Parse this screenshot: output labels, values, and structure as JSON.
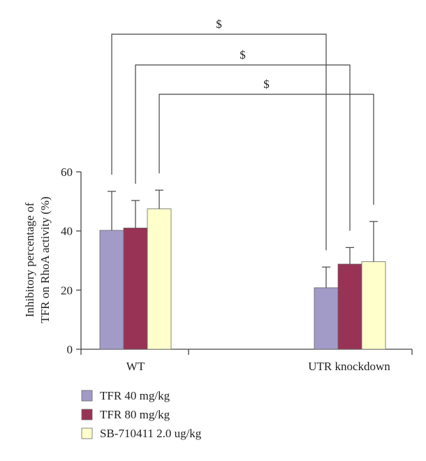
{
  "chart_data": {
    "type": "bar",
    "ylabel": [
      "Inhibitory percentage of",
      "TFR on RhoA activity (%)"
    ],
    "ylim": [
      0,
      60
    ],
    "yticks": [
      0,
      20,
      40,
      60
    ],
    "categories": [
      "WT",
      "UTR knockdown"
    ],
    "series": [
      {
        "name": "TFR 40 mg/kg",
        "color": "#a29bc8",
        "values": [
          40.2,
          20.8
        ],
        "errors": [
          13.2,
          7.0
        ]
      },
      {
        "name": "TFR 80 mg/kg",
        "color": "#993355",
        "values": [
          41.0,
          28.8
        ],
        "errors": [
          9.3,
          5.6
        ]
      },
      {
        "name": "SB-710411 2.0 ug/kg",
        "color": "#ffffcc",
        "values": [
          47.5,
          29.6
        ],
        "errors": [
          6.3,
          13.6
        ]
      }
    ],
    "comparisons": [
      {
        "series_index": 0,
        "label": "$"
      },
      {
        "series_index": 1,
        "label": "$"
      },
      {
        "series_index": 2,
        "label": "$"
      }
    ],
    "grid": false,
    "legend_position": "bottom-left"
  }
}
